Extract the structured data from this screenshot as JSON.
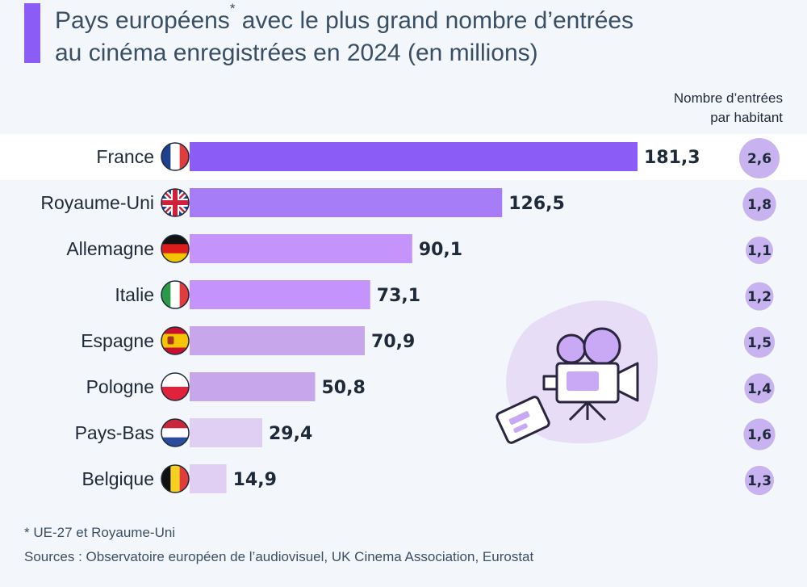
{
  "title": {
    "line1_pre": "Pays européens",
    "asterisk": "*",
    "line1_post": " avec le plus grand nombre d’entrées",
    "line2": "au cinéma enregistrées en 2024 (en millions)"
  },
  "per_capita_header": {
    "line1": "Nombre d’entrées",
    "line2": "par habitant"
  },
  "colors": {
    "accent": "#8b5cf6",
    "bars": [
      "#8b5cf6",
      "#a67cf7",
      "#c493fb",
      "#c493fb",
      "#c8a6ec",
      "#c8a6ec",
      "#e0cff3",
      "#e0cff3"
    ],
    "circle": "#c8b2f0",
    "highlight_row": "#ffffff"
  },
  "chart_data": {
    "type": "bar",
    "orientation": "horizontal",
    "categories": [
      "France",
      "Royaume-Uni",
      "Allemagne",
      "Italie",
      "Espagne",
      "Pologne",
      "Pays-Bas",
      "Belgique"
    ],
    "flags": [
      "flag-france-icon",
      "flag-uk-icon",
      "flag-germany-icon",
      "flag-italy-icon",
      "flag-spain-icon",
      "flag-poland-icon",
      "flag-netherlands-icon",
      "flag-belgium-icon"
    ],
    "series": [
      {
        "values": [
          181.3,
          126.5,
          90.1,
          73.1,
          70.9,
          50.8,
          29.4,
          14.9
        ]
      }
    ],
    "value_labels": [
      "181,3",
      "126,5",
      "90,1",
      "73,1",
      "70,9",
      "50,8",
      "29,4",
      "14,9"
    ],
    "per_capita": [
      2.6,
      1.8,
      1.1,
      1.2,
      1.5,
      1.4,
      1.6,
      1.3
    ],
    "per_capita_labels": [
      "2,6",
      "1,8",
      "1,1",
      "1,2",
      "1,5",
      "1,4",
      "1,6",
      "1,3"
    ],
    "xlim": [
      0,
      181.3
    ],
    "grid": false,
    "legend": "none"
  },
  "footnote": "* UE-27 et Royaume-Uni",
  "sources": "Sources : Observatoire européen de l’audiovisuel, UK Cinema Association, Eurostat",
  "illustration": {
    "icons": [
      "camera-icon",
      "ticket-icon"
    ]
  }
}
